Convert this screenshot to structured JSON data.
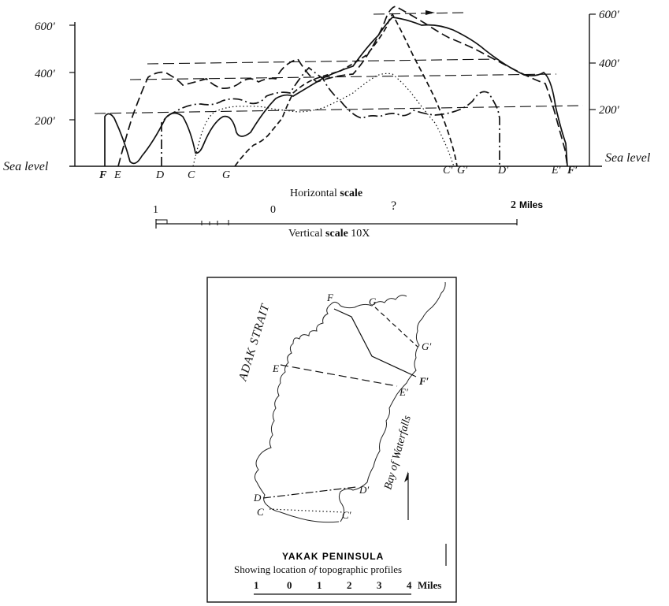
{
  "profile": {
    "elevation_ticks_left": [
      "600′",
      "400′",
      "200′"
    ],
    "elevation_ticks_right": [
      "600′",
      "400′",
      "200′"
    ],
    "sea_level_left": "Sea level",
    "sea_level_right": "Sea level",
    "start_labels": [
      "F",
      "E",
      "D",
      "C",
      "G"
    ],
    "end_labels": [
      "C′",
      "G′",
      "D′",
      "E′",
      "F′"
    ],
    "horizontal_scale_text": "Horizontal",
    "horizontal_scale_bold": "scale",
    "scale_numbers": [
      "1",
      "0",
      "?",
      "2"
    ],
    "scale_unit": "Miles",
    "vertical_scale_text": "Vertical",
    "vertical_scale_bold": "scale",
    "vertical_scale_value": "10X"
  },
  "map": {
    "strait_label": "ADAK STRAIT",
    "bay_label": "Bay of Waterfalls",
    "point_labels": [
      "F",
      "G",
      "G′",
      "E",
      "F′",
      "E′",
      "D′",
      "D",
      "C",
      "C′"
    ],
    "title": "YAKAK PENINSULA",
    "subtitle_start": "Showing location",
    "subtitle_of": "of",
    "subtitle_end": "topographic profiles",
    "scale_numbers": [
      "1",
      "0",
      "1",
      "2",
      "3",
      "4"
    ],
    "scale_unit": "Miles"
  }
}
